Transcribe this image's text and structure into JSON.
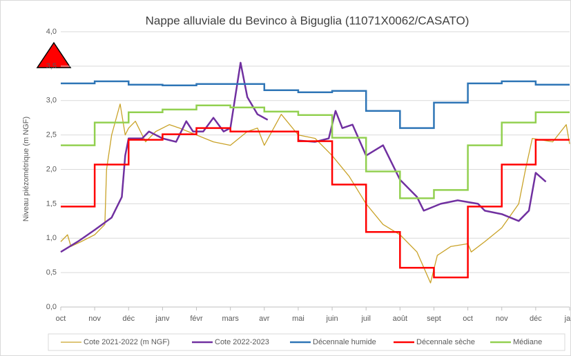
{
  "chart_data": {
    "type": "line",
    "title": "Nappe alluviale du Bevinco à Biguglia (11071X0062/CASATO)",
    "y_label": "Niveau piézométrique (m NGF)",
    "xlim": [
      0,
      15
    ],
    "xticks": [
      {
        "value": 0,
        "label": "oct"
      },
      {
        "value": 1,
        "label": "nov"
      },
      {
        "value": 2,
        "label": "déc"
      },
      {
        "value": 3,
        "label": "janv"
      },
      {
        "value": 4,
        "label": "févr"
      },
      {
        "value": 5,
        "label": "mars"
      },
      {
        "value": 6,
        "label": "avr"
      },
      {
        "value": 7,
        "label": "mai"
      },
      {
        "value": 8,
        "label": "juin"
      },
      {
        "value": 9,
        "label": "juil"
      },
      {
        "value": 10,
        "label": "août"
      },
      {
        "value": 11,
        "label": "sept"
      },
      {
        "value": 12,
        "label": "oct"
      },
      {
        "value": 13,
        "label": "nov"
      },
      {
        "value": 14,
        "label": "déc"
      },
      {
        "value": 15,
        "label": "jan"
      }
    ],
    "ylim": [
      0,
      4
    ],
    "yticks": [
      {
        "value": 0,
        "label": "0,0"
      },
      {
        "value": 0.5,
        "label": "0,5"
      },
      {
        "value": 1,
        "label": "1,0"
      },
      {
        "value": 1.5,
        "label": "1,5"
      },
      {
        "value": 2,
        "label": "2,0"
      },
      {
        "value": 2.5,
        "label": "2,5"
      },
      {
        "value": 3,
        "label": "3,0"
      },
      {
        "value": 3.5,
        "label": "3,5"
      },
      {
        "value": 4,
        "label": "4,0"
      }
    ],
    "grid": true,
    "legend": "bottom",
    "series": [
      {
        "name": "Cote 2021-2022 (m NGF)",
        "color": "#c9a227",
        "width": 1.3,
        "x": [
          0,
          0.2,
          0.3,
          0.6,
          1,
          1.3,
          1.35,
          1.5,
          1.75,
          1.9,
          2.0,
          2.2,
          2.5,
          2.8,
          3.2,
          3.5,
          4,
          4.5,
          5,
          5.5,
          5.8,
          6,
          6.5,
          7,
          7.5,
          8,
          8.5,
          9,
          9.5,
          10,
          10.5,
          10.9,
          11.1,
          11.5,
          12,
          12.1,
          12.5,
          13,
          13.5,
          13.7,
          13.9,
          14.5,
          14.9,
          15
        ],
        "values": [
          0.95,
          1.05,
          0.88,
          0.95,
          1.05,
          1.2,
          2.0,
          2.5,
          2.95,
          2.5,
          2.6,
          2.7,
          2.4,
          2.55,
          2.65,
          2.6,
          2.5,
          2.4,
          2.35,
          2.55,
          2.6,
          2.35,
          2.8,
          2.5,
          2.45,
          2.2,
          1.9,
          1.5,
          1.2,
          1.05,
          0.8,
          0.35,
          0.75,
          0.88,
          0.92,
          0.8,
          0.95,
          1.15,
          1.5,
          2.0,
          2.45,
          2.4,
          2.65,
          2.37
        ]
      },
      {
        "name": "Cote 2022-2023",
        "color": "#7030a0",
        "width": 2.5,
        "x": [
          0,
          0.5,
          1,
          1.5,
          1.8,
          1.9,
          2.0,
          2.4,
          2.6,
          3,
          3.4,
          3.7,
          3.9,
          4.2,
          4.5,
          4.8,
          5.0,
          5.3,
          5.5,
          5.8,
          6.1,
          6.5,
          7.0,
          7.5,
          7.9,
          8.1,
          8.3,
          8.6,
          9,
          9.5,
          10,
          10.5,
          10.7,
          11.2,
          11.7,
          12.3,
          12.5,
          13,
          13.5,
          13.8,
          14,
          14.3
        ],
        "values": [
          0.8,
          0.95,
          1.12,
          1.3,
          1.6,
          2.2,
          2.45,
          2.45,
          2.55,
          2.45,
          2.4,
          2.7,
          2.55,
          2.55,
          2.75,
          2.55,
          2.6,
          3.55,
          3.05,
          2.8,
          2.72,
          null,
          2.42,
          2.4,
          2.45,
          2.85,
          2.6,
          2.65,
          2.2,
          2.35,
          1.85,
          1.6,
          1.4,
          1.5,
          1.55,
          1.5,
          1.4,
          1.35,
          1.25,
          1.4,
          1.95,
          1.82
        ]
      },
      {
        "name": "Décennale humide",
        "color": "#2e75b6",
        "width": 2.5,
        "step": true,
        "values": [
          3.25,
          3.28,
          3.23,
          3.22,
          3.24,
          3.24,
          3.15,
          3.12,
          3.14,
          2.85,
          2.6,
          2.97,
          3.25,
          3.28,
          3.23
        ]
      },
      {
        "name": "Décennale sèche",
        "color": "#ff0000",
        "width": 2.5,
        "step": true,
        "values": [
          1.46,
          2.07,
          2.43,
          2.51,
          2.6,
          2.55,
          2.55,
          2.41,
          1.78,
          1.09,
          0.57,
          0.43,
          1.46,
          2.07,
          2.43
        ]
      },
      {
        "name": "Médiane",
        "color": "#92d050",
        "width": 2.5,
        "step": true,
        "values": [
          2.35,
          2.68,
          2.83,
          2.87,
          2.93,
          2.9,
          2.84,
          2.79,
          2.46,
          1.97,
          1.58,
          1.7,
          2.35,
          2.68,
          2.83
        ]
      }
    ]
  }
}
